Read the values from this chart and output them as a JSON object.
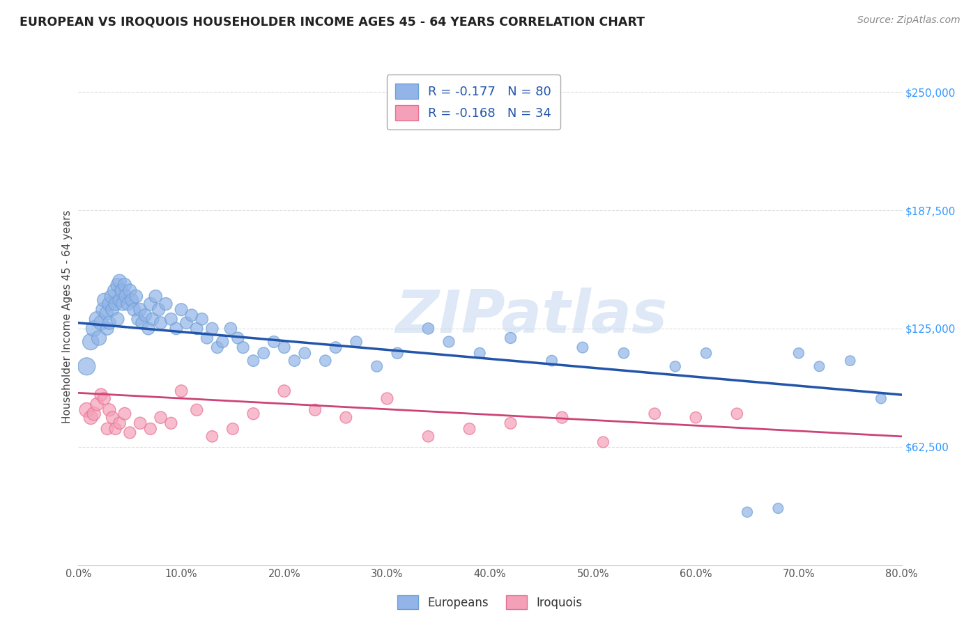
{
  "title": "EUROPEAN VS IROQUOIS HOUSEHOLDER INCOME AGES 45 - 64 YEARS CORRELATION CHART",
  "source": "Source: ZipAtlas.com",
  "ylabel": "Householder Income Ages 45 - 64 years",
  "xlabel_ticks": [
    "0.0%",
    "10.0%",
    "20.0%",
    "30.0%",
    "40.0%",
    "50.0%",
    "60.0%",
    "70.0%",
    "80.0%"
  ],
  "ytick_labels": [
    "$62,500",
    "$125,000",
    "$187,500",
    "$250,000"
  ],
  "ytick_values": [
    62500,
    125000,
    187500,
    250000
  ],
  "xlim": [
    0.0,
    0.8
  ],
  "ylim": [
    0,
    262500
  ],
  "european_color": "#92b4e8",
  "iroquois_color": "#f4a0b8",
  "european_edge_color": "#6b9fd4",
  "iroquois_edge_color": "#e87090",
  "european_line_color": "#2255aa",
  "iroquois_line_color": "#cc4477",
  "legend_R_european": "-0.177",
  "legend_N_european": "80",
  "legend_R_iroquois": "-0.168",
  "legend_N_iroquois": "34",
  "watermark_text": "ZIPatlas",
  "watermark_color": "#c8daf0",
  "legend_label_color": "#2255aa",
  "legend_N_color": "#1144cc",
  "title_color": "#222222",
  "source_color": "#888888",
  "ylabel_color": "#444444",
  "tick_color": "#555555",
  "right_tick_color": "#3399ff",
  "grid_color": "#dddddd",
  "european_x": [
    0.008,
    0.012,
    0.015,
    0.018,
    0.02,
    0.022,
    0.024,
    0.025,
    0.027,
    0.028,
    0.03,
    0.03,
    0.032,
    0.033,
    0.035,
    0.036,
    0.038,
    0.038,
    0.04,
    0.04,
    0.042,
    0.043,
    0.045,
    0.046,
    0.048,
    0.05,
    0.052,
    0.054,
    0.056,
    0.058,
    0.06,
    0.062,
    0.065,
    0.068,
    0.07,
    0.072,
    0.075,
    0.078,
    0.08,
    0.085,
    0.09,
    0.095,
    0.1,
    0.105,
    0.11,
    0.115,
    0.12,
    0.125,
    0.13,
    0.135,
    0.14,
    0.148,
    0.155,
    0.16,
    0.17,
    0.18,
    0.19,
    0.2,
    0.21,
    0.22,
    0.24,
    0.25,
    0.27,
    0.29,
    0.31,
    0.34,
    0.36,
    0.39,
    0.42,
    0.46,
    0.49,
    0.53,
    0.58,
    0.61,
    0.65,
    0.68,
    0.7,
    0.72,
    0.75,
    0.78
  ],
  "european_y": [
    105000,
    118000,
    125000,
    130000,
    120000,
    128000,
    135000,
    140000,
    133000,
    125000,
    138000,
    128000,
    142000,
    135000,
    145000,
    138000,
    148000,
    130000,
    150000,
    140000,
    145000,
    138000,
    148000,
    142000,
    138000,
    145000,
    140000,
    135000,
    142000,
    130000,
    135000,
    128000,
    132000,
    125000,
    138000,
    130000,
    142000,
    135000,
    128000,
    138000,
    130000,
    125000,
    135000,
    128000,
    132000,
    125000,
    130000,
    120000,
    125000,
    115000,
    118000,
    125000,
    120000,
    115000,
    108000,
    112000,
    118000,
    115000,
    108000,
    112000,
    108000,
    115000,
    118000,
    105000,
    112000,
    125000,
    118000,
    112000,
    120000,
    108000,
    115000,
    112000,
    105000,
    112000,
    28000,
    30000,
    112000,
    105000,
    108000,
    88000
  ],
  "european_size": [
    320,
    280,
    260,
    240,
    230,
    220,
    210,
    200,
    190,
    180,
    200,
    185,
    190,
    185,
    195,
    188,
    192,
    182,
    198,
    185,
    190,
    183,
    192,
    186,
    182,
    188,
    182,
    178,
    184,
    175,
    180,
    172,
    175,
    168,
    178,
    170,
    176,
    168,
    165,
    170,
    162,
    158,
    165,
    158,
    162,
    155,
    158,
    150,
    155,
    148,
    152,
    156,
    150,
    148,
    142,
    145,
    148,
    145,
    140,
    142,
    138,
    142,
    138,
    132,
    135,
    138,
    132,
    128,
    132,
    125,
    128,
    122,
    118,
    120,
    115,
    112,
    118,
    112,
    108,
    110
  ],
  "iroquois_x": [
    0.008,
    0.012,
    0.015,
    0.018,
    0.022,
    0.025,
    0.028,
    0.03,
    0.033,
    0.036,
    0.04,
    0.045,
    0.05,
    0.06,
    0.07,
    0.08,
    0.09,
    0.1,
    0.115,
    0.13,
    0.15,
    0.17,
    0.2,
    0.23,
    0.26,
    0.3,
    0.34,
    0.38,
    0.42,
    0.47,
    0.51,
    0.56,
    0.6,
    0.64
  ],
  "iroquois_y": [
    82000,
    78000,
    80000,
    85000,
    90000,
    88000,
    72000,
    82000,
    78000,
    72000,
    75000,
    80000,
    70000,
    75000,
    72000,
    78000,
    75000,
    92000,
    82000,
    68000,
    72000,
    80000,
    92000,
    82000,
    78000,
    88000,
    68000,
    72000,
    75000,
    78000,
    65000,
    80000,
    78000,
    80000
  ],
  "iroquois_size": [
    220,
    200,
    190,
    180,
    170,
    165,
    155,
    168,
    160,
    152,
    158,
    162,
    148,
    155,
    148,
    155,
    150,
    158,
    150,
    140,
    145,
    150,
    158,
    148,
    145,
    150,
    138,
    142,
    145,
    148,
    132,
    140,
    138,
    140
  ],
  "eu_trend_x0": 0.0,
  "eu_trend_x1": 0.8,
  "eu_trend_y0": 128000,
  "eu_trend_y1": 90000,
  "ir_trend_x0": 0.0,
  "ir_trend_x1": 0.8,
  "ir_trend_y0": 91000,
  "ir_trend_y1": 68000
}
